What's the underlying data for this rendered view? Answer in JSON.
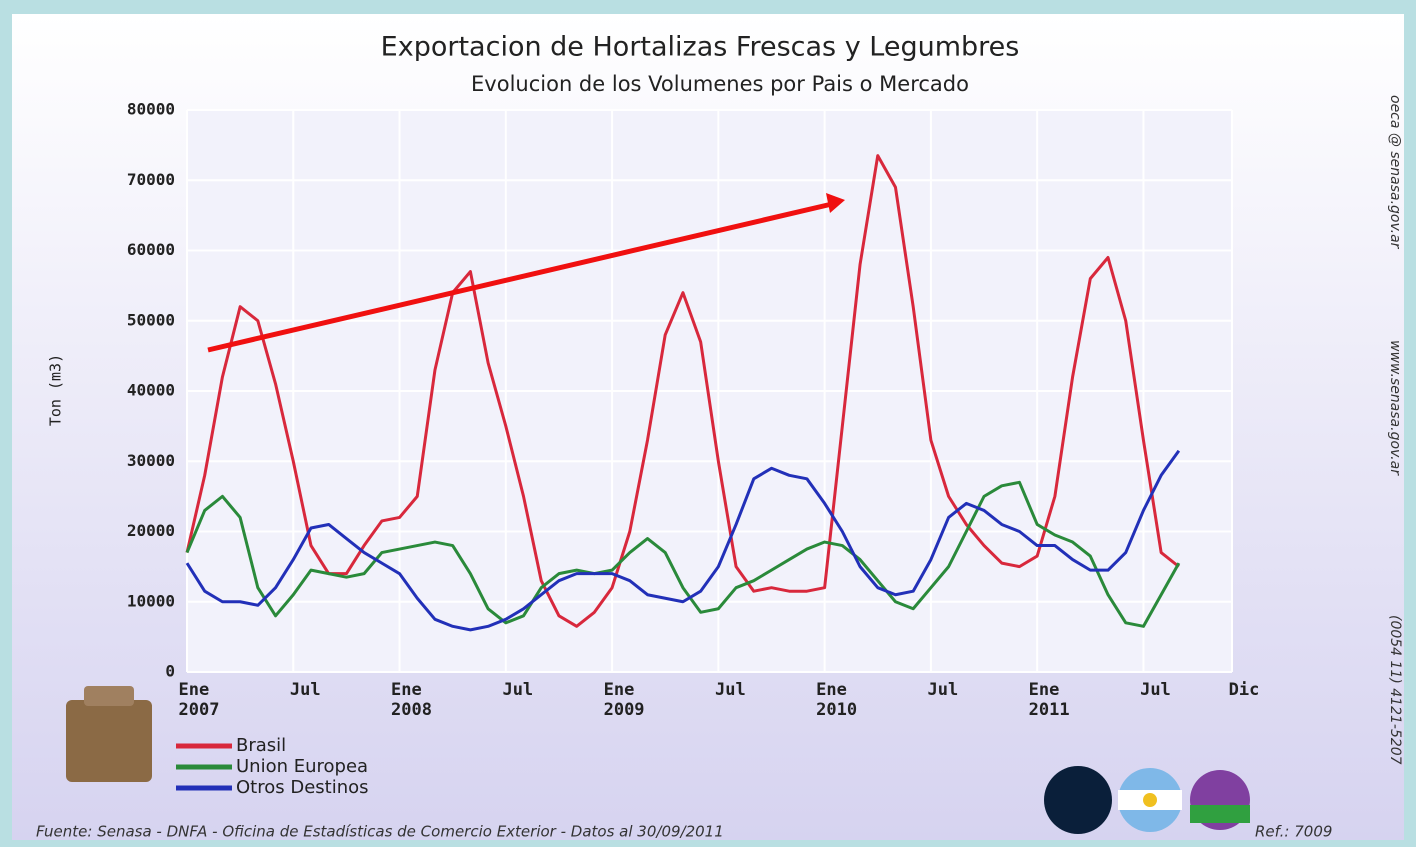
{
  "chart_data": {
    "type": "line",
    "title": "Exportacion de Hortalizas Frescas y Legumbres",
    "subtitle": "Evolucion de los Volumenes por Pais o Mercado",
    "y_label": "Ton (m3)",
    "x": [
      0,
      1,
      2,
      3,
      4,
      5,
      6,
      7,
      8,
      9,
      10,
      11,
      12,
      13,
      14,
      15,
      16,
      17,
      18,
      19,
      20,
      21,
      22,
      23,
      24,
      25,
      26,
      27,
      28,
      29,
      30,
      31,
      32,
      33,
      34,
      35,
      36,
      37,
      38,
      39,
      40,
      41,
      42,
      43,
      44,
      45,
      46,
      47,
      48,
      49,
      50,
      51,
      52,
      53,
      54,
      55,
      56
    ],
    "series": [
      {
        "name": "Brasil",
        "color": "#d8283c",
        "values": [
          17000,
          28000,
          42000,
          52000,
          50000,
          41000,
          30000,
          18000,
          14000,
          14000,
          18000,
          21500,
          22000,
          25000,
          43000,
          54000,
          57000,
          44000,
          35000,
          25000,
          13000,
          8000,
          6500,
          8500,
          12000,
          20000,
          33000,
          48000,
          54000,
          47000,
          30000,
          15000,
          11500,
          12000,
          11500,
          11500,
          12000,
          35000,
          58000,
          73500,
          69000,
          52000,
          33000,
          25000,
          21000,
          18000,
          15500,
          15000,
          16500,
          25000,
          42000,
          56000,
          59000,
          50000,
          33000,
          17000,
          15000
        ]
      },
      {
        "name": "Union Europea",
        "color": "#2a8a3a",
        "values": [
          17000,
          23000,
          25000,
          22000,
          12000,
          8000,
          11000,
          14500,
          14000,
          13500,
          14000,
          17000,
          17500,
          18000,
          18500,
          18000,
          14000,
          9000,
          7000,
          8000,
          12000,
          14000,
          14500,
          14000,
          14500,
          17000,
          19000,
          17000,
          12000,
          8500,
          9000,
          12000,
          13000,
          14500,
          16000,
          17500,
          18500,
          18000,
          16000,
          13000,
          10000,
          9000,
          12000,
          15000,
          20000,
          25000,
          26500,
          27000,
          21000,
          19500,
          18500,
          16500,
          11000,
          7000,
          6500,
          11000,
          15500
        ]
      },
      {
        "name": "Otros Destinos",
        "color": "#2230b8",
        "values": [
          15500,
          11500,
          10000,
          10000,
          9500,
          12000,
          16000,
          20500,
          21000,
          19000,
          17000,
          15500,
          14000,
          10500,
          7500,
          6500,
          6000,
          6500,
          7500,
          9000,
          11000,
          13000,
          14000,
          14000,
          14000,
          13000,
          11000,
          10500,
          10000,
          11500,
          15000,
          21000,
          27500,
          29000,
          28000,
          27500,
          24000,
          20000,
          15000,
          12000,
          11000,
          11500,
          16000,
          22000,
          24000,
          23000,
          21000,
          20000,
          18000,
          18000,
          16000,
          14500,
          14500,
          17000,
          23000,
          28000,
          31500
        ]
      }
    ],
    "xlim": [
      0,
      59
    ],
    "xticks": [
      {
        "value": 0,
        "label": "Ene\n2007"
      },
      {
        "value": 6,
        "label": "Jul"
      },
      {
        "value": 12,
        "label": "Ene\n2008"
      },
      {
        "value": 18,
        "label": "Jul"
      },
      {
        "value": 24,
        "label": "Ene\n2009"
      },
      {
        "value": 30,
        "label": "Jul"
      },
      {
        "value": 36,
        "label": "Ene\n2010"
      },
      {
        "value": 42,
        "label": "Jul"
      },
      {
        "value": 48,
        "label": "Ene\n2011"
      },
      {
        "value": 54,
        "label": "Jul"
      },
      {
        "value": 59,
        "label": "Dic"
      }
    ],
    "ylim": [
      0,
      80000
    ],
    "yticks": [
      0,
      10000,
      20000,
      30000,
      40000,
      50000,
      60000,
      70000,
      80000
    ],
    "grid": true,
    "side_texts": [
      "oeca @ senasa.gov.ar",
      "www.senasa.gov.ar",
      "(0054 11) 4121-5207"
    ],
    "source": "Fuente: Senasa - DNFA - Oficina de Estadísticas de Comercio Exterior - Datos al 30/09/2011",
    "reference": "Ref.: 7009"
  }
}
